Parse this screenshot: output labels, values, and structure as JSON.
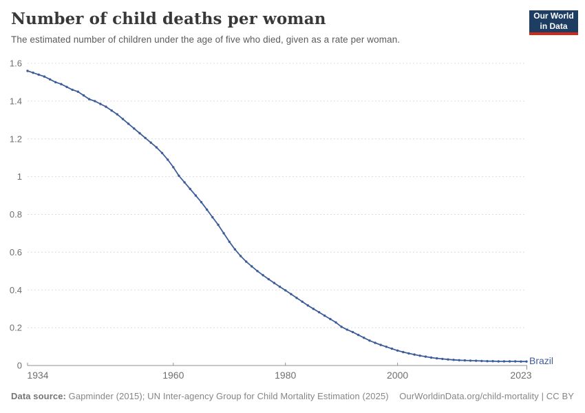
{
  "header": {
    "title": "Number of child deaths per woman",
    "subtitle": "The estimated number of children under the age of five who died, given as a rate per woman.",
    "logo_line1": "Our World",
    "logo_line2": "in Data",
    "logo_bg_color": "#1d3d63",
    "logo_accent_color": "#cf2a18"
  },
  "footer": {
    "source_label": "Data source:",
    "source_text": " Gapminder (2015); UN Inter-agency Group for Child Mortality Estimation (2025)",
    "credit": "OurWorldinData.org/child-mortality | CC BY"
  },
  "chart_data": {
    "type": "line",
    "title": "Number of child deaths per woman",
    "entity_label": "Brazil",
    "line_color": "#3d5c99",
    "gridline_color": "#dcdcdc",
    "axis_color": "#8f8f8f",
    "tick_label_color": "#6e6e6e",
    "grid": true,
    "legend_position": "end-of-line",
    "xlim": [
      1934,
      2023
    ],
    "ylim": [
      0,
      1.6
    ],
    "y_ticks": [
      0,
      0.2,
      0.4,
      0.6,
      0.8,
      1,
      1.2,
      1.4,
      1.6
    ],
    "y_tick_labels": [
      "0",
      "0.2",
      "0.4",
      "0.6",
      "0.8",
      "1",
      "1.2",
      "1.4",
      "1.6"
    ],
    "x_ticks": [
      1934,
      1960,
      1980,
      2000,
      2023
    ],
    "x_tick_labels": [
      "1934",
      "1960",
      "1980",
      "2000",
      "2023"
    ],
    "series": [
      {
        "name": "Brazil",
        "years": [
          1934,
          1935,
          1936,
          1937,
          1938,
          1939,
          1940,
          1941,
          1942,
          1943,
          1944,
          1945,
          1946,
          1947,
          1948,
          1949,
          1950,
          1951,
          1952,
          1953,
          1954,
          1955,
          1956,
          1957,
          1958,
          1959,
          1960,
          1961,
          1962,
          1963,
          1964,
          1965,
          1966,
          1967,
          1968,
          1969,
          1970,
          1971,
          1972,
          1973,
          1974,
          1975,
          1976,
          1977,
          1978,
          1979,
          1980,
          1981,
          1982,
          1983,
          1984,
          1985,
          1986,
          1987,
          1988,
          1989,
          1990,
          1991,
          1992,
          1993,
          1994,
          1995,
          1996,
          1997,
          1998,
          1999,
          2000,
          2001,
          2002,
          2003,
          2004,
          2005,
          2006,
          2007,
          2008,
          2009,
          2010,
          2011,
          2012,
          2013,
          2014,
          2015,
          2016,
          2017,
          2018,
          2019,
          2020,
          2021,
          2022,
          2023
        ],
        "values": [
          1.56,
          1.55,
          1.54,
          1.53,
          1.515,
          1.5,
          1.49,
          1.475,
          1.46,
          1.45,
          1.43,
          1.41,
          1.4,
          1.385,
          1.37,
          1.35,
          1.33,
          1.305,
          1.28,
          1.255,
          1.23,
          1.205,
          1.18,
          1.155,
          1.125,
          1.09,
          1.05,
          1.005,
          0.97,
          0.935,
          0.9,
          0.865,
          0.825,
          0.785,
          0.745,
          0.7,
          0.655,
          0.615,
          0.58,
          0.55,
          0.525,
          0.5,
          0.478,
          0.457,
          0.437,
          0.417,
          0.398,
          0.378,
          0.358,
          0.338,
          0.318,
          0.3,
          0.282,
          0.264,
          0.246,
          0.228,
          0.205,
          0.19,
          0.177,
          0.162,
          0.147,
          0.132,
          0.12,
          0.109,
          0.099,
          0.089,
          0.079,
          0.071,
          0.064,
          0.058,
          0.052,
          0.047,
          0.042,
          0.038,
          0.035,
          0.032,
          0.03,
          0.028,
          0.027,
          0.026,
          0.025,
          0.024,
          0.023,
          0.023,
          0.022,
          0.022,
          0.022,
          0.022,
          0.021,
          0.021
        ]
      }
    ]
  }
}
